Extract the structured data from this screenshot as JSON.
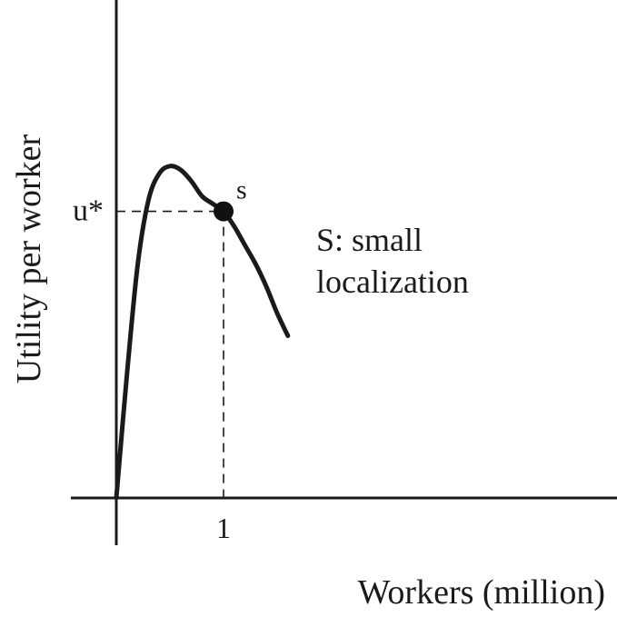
{
  "chart_data": {
    "type": "line",
    "xlabel": "Workers (million)",
    "ylabel": "Utility per worker",
    "xlim": [
      0,
      4.6
    ],
    "ylim": [
      0,
      1
    ],
    "grid": false,
    "x_ticks": [
      {
        "value": 1,
        "label": "1"
      }
    ],
    "y_ticks": [
      {
        "value": 0.76,
        "label": "u*"
      }
    ],
    "series": [
      {
        "x": [
          0,
          0.1,
          0.2,
          0.3,
          0.4,
          0.5,
          0.6,
          0.7,
          0.8,
          0.9,
          1.0,
          1.1,
          1.2,
          1.3,
          1.4,
          1.5,
          1.6
        ],
        "y": [
          0.0,
          0.33,
          0.62,
          0.79,
          0.86,
          0.88,
          0.87,
          0.84,
          0.8,
          0.78,
          0.76,
          0.72,
          0.67,
          0.62,
          0.56,
          0.49,
          0.43
        ]
      }
    ],
    "points": [
      {
        "x": 1,
        "y": 0.76,
        "label": "s"
      }
    ],
    "reference_lines": [
      {
        "x": 1,
        "y": 0.76,
        "style": "dashed"
      }
    ],
    "annotations": [
      {
        "lines": [
          "S: small",
          "localization"
        ]
      }
    ]
  }
}
